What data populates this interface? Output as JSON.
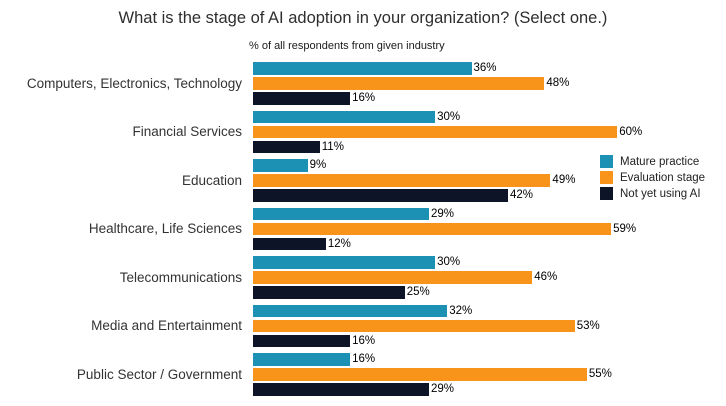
{
  "title": "What is the stage of AI adoption in your organization? (Select one.)",
  "subtitle": "% of all respondents from given industry",
  "colors": {
    "mature_practice": "#1d91b4",
    "evaluation_stage": "#f89419",
    "not_yet_using_ai": "#0d1428"
  },
  "legend": [
    {
      "label": "Mature practice",
      "color": "#1d91b4"
    },
    {
      "label": "Evaluation stage",
      "color": "#f89419"
    },
    {
      "label": "Not yet using AI",
      "color": "#0d1428"
    }
  ],
  "chart_data": {
    "type": "bar",
    "orientation": "horizontal",
    "title": "What is the stage of AI adoption in your organization? (Select one.)",
    "subtitle": "% of all respondents from given industry",
    "categories": [
      "Computers, Electronics, Technology",
      "Financial Services",
      "Education",
      "Healthcare, Life Sciences",
      "Telecommunications",
      "Media and Entertainment",
      "Public Sector / Government"
    ],
    "series": [
      {
        "name": "Mature practice",
        "color": "#1d91b4",
        "values": [
          36,
          30,
          9,
          29,
          30,
          32,
          16
        ]
      },
      {
        "name": "Evaluation stage",
        "color": "#f89419",
        "values": [
          48,
          60,
          49,
          59,
          46,
          53,
          55
        ]
      },
      {
        "name": "Not yet using AI",
        "color": "#0d1428",
        "values": [
          16,
          11,
          42,
          12,
          25,
          16,
          29
        ]
      }
    ],
    "value_suffix": "%",
    "xlim": [
      0,
      77
    ],
    "grid": false,
    "legend_position": "right-middle",
    "data_labels": true
  }
}
